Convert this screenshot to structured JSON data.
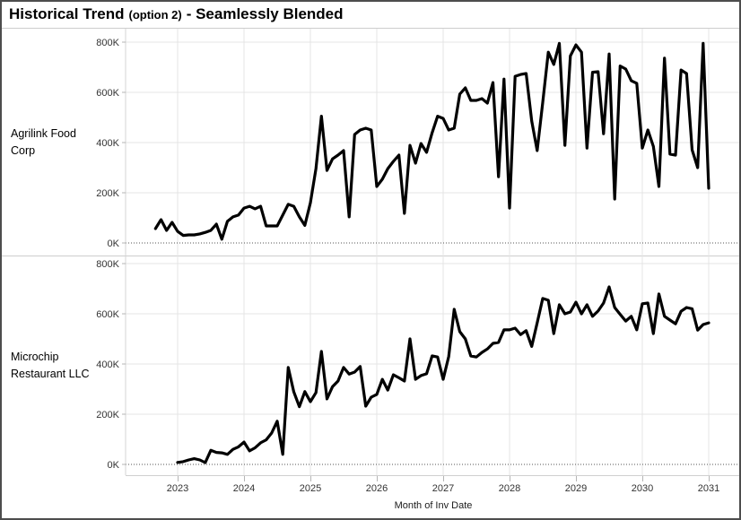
{
  "title": {
    "main": "Historical Trend",
    "option": "(option 2)",
    "suffix": "- Seamlessly Blended"
  },
  "rows": [
    {
      "label": "Agrilink Food Corp"
    },
    {
      "label": "Microchip Restaurant LLC"
    }
  ],
  "x_axis": {
    "title": "Month of Inv Date",
    "years": [
      2023,
      2024,
      2025,
      2026,
      2027,
      2028,
      2029,
      2030,
      2031
    ]
  },
  "y_axis": {
    "tick_values": [
      0,
      200,
      400,
      600,
      800
    ],
    "tick_labels": [
      "0K",
      "200K",
      "400K",
      "600K",
      "800K"
    ]
  },
  "style": {
    "line_color": "#000000",
    "gridline_color": "#e4e4e4",
    "axis_line_color": "#d4d4d4",
    "zero_line_color": "#555555",
    "tick_text_color": "#333333"
  },
  "chart_data": [
    {
      "type": "line",
      "name": "Agrilink Food Corp",
      "title": "",
      "xlabel": "Month of Inv Date",
      "ylabel": "",
      "y_unit": "K",
      "ylim": [
        0,
        800
      ],
      "x_start": "2022-09",
      "x_interval": "month",
      "x_end": "2031-01",
      "values": [
        57,
        93,
        50,
        82,
        46,
        30,
        32,
        32,
        36,
        42,
        50,
        75,
        15,
        86,
        104,
        111,
        139,
        146,
        136,
        146,
        68,
        68,
        68,
        111,
        154,
        146,
        104,
        70,
        160,
        296,
        505,
        289,
        335,
        350,
        368,
        104,
        432,
        450,
        457,
        450,
        225,
        254,
        296,
        325,
        350,
        118,
        389,
        318,
        396,
        361,
        439,
        505,
        496,
        450,
        457,
        593,
        618,
        568,
        568,
        575,
        557,
        639,
        264,
        653,
        139,
        664,
        671,
        675,
        486,
        368,
        560,
        760,
        711,
        795,
        389,
        745,
        789,
        760,
        378,
        680,
        682,
        435,
        753,
        175,
        705,
        693,
        646,
        636,
        378,
        450,
        385,
        225,
        736,
        354,
        350,
        689,
        675,
        371,
        300,
        795,
        218
      ]
    },
    {
      "type": "line",
      "name": "Microchip Restaurant LLC",
      "title": "",
      "xlabel": "Month of Inv Date",
      "ylabel": "",
      "y_unit": "K",
      "ylim": [
        0,
        800
      ],
      "x_start": "2023-01",
      "x_interval": "month",
      "x_end": "2031-01",
      "values": [
        8,
        11,
        18,
        23,
        18,
        7,
        56,
        48,
        46,
        40,
        60,
        70,
        89,
        54,
        66,
        86,
        98,
        125,
        172,
        40,
        386,
        289,
        230,
        290,
        250,
        286,
        450,
        261,
        310,
        332,
        386,
        360,
        368,
        390,
        232,
        268,
        279,
        339,
        296,
        357,
        345,
        332,
        500,
        339,
        354,
        361,
        432,
        428,
        339,
        430,
        618,
        529,
        500,
        432,
        428,
        446,
        460,
        482,
        486,
        536,
        536,
        543,
        517,
        533,
        470,
        564,
        661,
        654,
        521,
        636,
        600,
        607,
        646,
        600,
        636,
        590,
        611,
        643,
        707,
        625,
        598,
        571,
        590,
        536,
        640,
        643,
        521,
        679,
        590,
        575,
        560,
        610,
        625,
        620,
        535,
        557,
        564
      ]
    }
  ]
}
